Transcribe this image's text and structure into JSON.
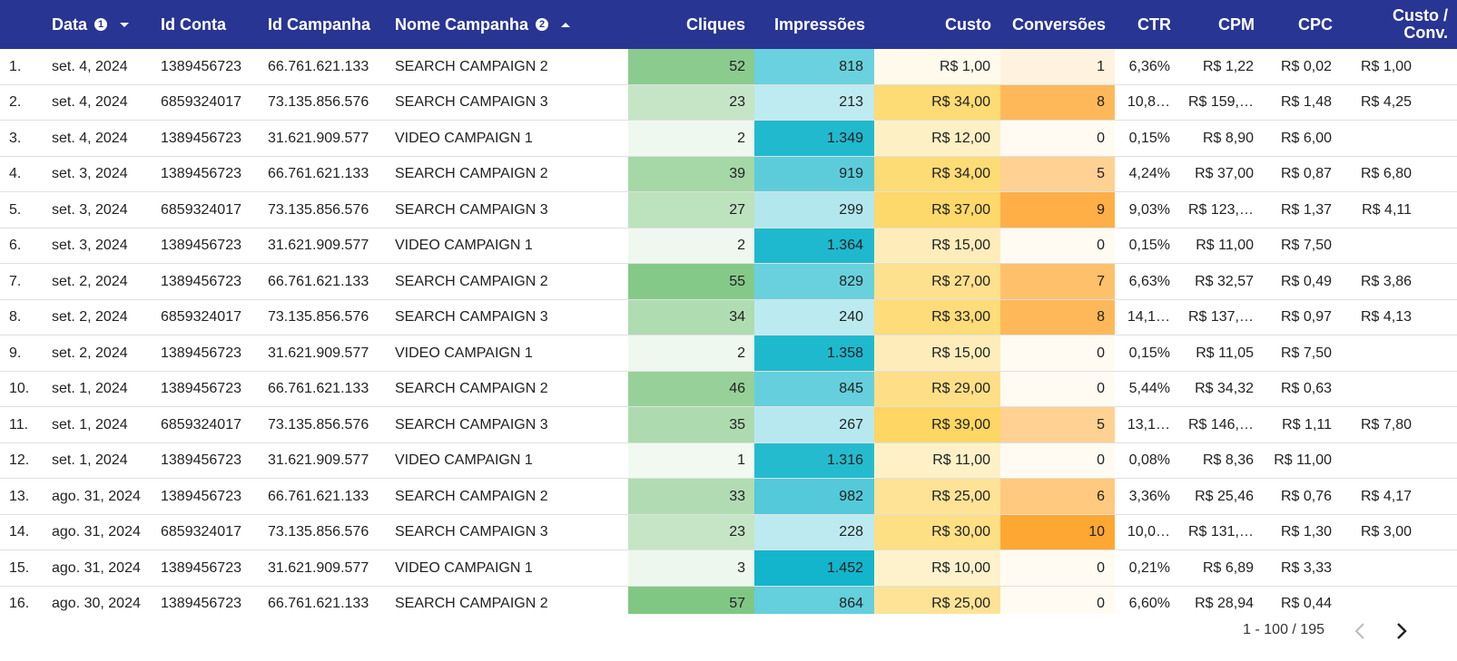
{
  "table": {
    "columns": [
      null,
      {
        "label": "Data",
        "sort_rank": 1
      },
      {
        "label": "Id Conta"
      },
      {
        "label": "Id Campanha"
      },
      {
        "label": "Nome Campanha",
        "sort_rank": 2
      },
      {
        "label": "Cliques"
      },
      {
        "label": "Impressões"
      },
      {
        "label": "Custo"
      },
      {
        "label": "Conversões"
      },
      {
        "label": "CTR"
      },
      {
        "label": "CPM"
      },
      {
        "label": "CPC"
      },
      {
        "label": "Custo / Conv."
      }
    ],
    "rows": [
      [
        "1.",
        "set. 4, 2024",
        "1389456723",
        "66.761.621.133",
        "SEARCH CAMPAIGN 2",
        "52",
        "818",
        "R$ 1,00",
        "1",
        "6,36%",
        "R$ 1,22",
        "R$ 0,02",
        "R$ 1,00"
      ],
      [
        "2.",
        "set. 4, 2024",
        "6859324017",
        "73.135.856.576",
        "SEARCH CAMPAIGN 3",
        "23",
        "213",
        "R$ 34,00",
        "8",
        "10,8…",
        "R$ 159,…",
        "R$ 1,48",
        "R$ 4,25"
      ],
      [
        "3.",
        "set. 4, 2024",
        "1389456723",
        "31.621.909.577",
        "VIDEO CAMPAIGN 1",
        "2",
        "1.349",
        "R$ 12,00",
        "0",
        "0,15%",
        "R$ 8,90",
        "R$ 6,00",
        null
      ],
      [
        "4.",
        "set. 3, 2024",
        "1389456723",
        "66.761.621.133",
        "SEARCH CAMPAIGN 2",
        "39",
        "919",
        "R$ 34,00",
        "5",
        "4,24%",
        "R$ 37,00",
        "R$ 0,87",
        "R$ 6,80"
      ],
      [
        "5.",
        "set. 3, 2024",
        "6859324017",
        "73.135.856.576",
        "SEARCH CAMPAIGN 3",
        "27",
        "299",
        "R$ 37,00",
        "9",
        "9,03%",
        "R$ 123,…",
        "R$ 1,37",
        "R$ 4,11"
      ],
      [
        "6.",
        "set. 3, 2024",
        "1389456723",
        "31.621.909.577",
        "VIDEO CAMPAIGN 1",
        "2",
        "1.364",
        "R$ 15,00",
        "0",
        "0,15%",
        "R$ 11,00",
        "R$ 7,50",
        null
      ],
      [
        "7.",
        "set. 2, 2024",
        "1389456723",
        "66.761.621.133",
        "SEARCH CAMPAIGN 2",
        "55",
        "829",
        "R$ 27,00",
        "7",
        "6,63%",
        "R$ 32,57",
        "R$ 0,49",
        "R$ 3,86"
      ],
      [
        "8.",
        "set. 2, 2024",
        "6859324017",
        "73.135.856.576",
        "SEARCH CAMPAIGN 3",
        "34",
        "240",
        "R$ 33,00",
        "8",
        "14,1…",
        "R$ 137,…",
        "R$ 0,97",
        "R$ 4,13"
      ],
      [
        "9.",
        "set. 2, 2024",
        "1389456723",
        "31.621.909.577",
        "VIDEO CAMPAIGN 1",
        "2",
        "1.358",
        "R$ 15,00",
        "0",
        "0,15%",
        "R$ 11,05",
        "R$ 7,50",
        null
      ],
      [
        "10.",
        "set. 1, 2024",
        "1389456723",
        "66.761.621.133",
        "SEARCH CAMPAIGN 2",
        "46",
        "845",
        "R$ 29,00",
        "0",
        "5,44%",
        "R$ 34,32",
        "R$ 0,63",
        null
      ],
      [
        "11.",
        "set. 1, 2024",
        "6859324017",
        "73.135.856.576",
        "SEARCH CAMPAIGN 3",
        "35",
        "267",
        "R$ 39,00",
        "5",
        "13,1…",
        "R$ 146,…",
        "R$ 1,11",
        "R$ 7,80"
      ],
      [
        "12.",
        "set. 1, 2024",
        "1389456723",
        "31.621.909.577",
        "VIDEO CAMPAIGN 1",
        "1",
        "1.316",
        "R$ 11,00",
        "0",
        "0,08%",
        "R$ 8,36",
        "R$ 11,00",
        null
      ],
      [
        "13.",
        "ago. 31, 2024",
        "1389456723",
        "66.761.621.133",
        "SEARCH CAMPAIGN 2",
        "33",
        "982",
        "R$ 25,00",
        "6",
        "3,36%",
        "R$ 25,46",
        "R$ 0,76",
        "R$ 4,17"
      ],
      [
        "14.",
        "ago. 31, 2024",
        "6859324017",
        "73.135.856.576",
        "SEARCH CAMPAIGN 3",
        "23",
        "228",
        "R$ 30,00",
        "10",
        "10,0…",
        "R$ 131,…",
        "R$ 1,30",
        "R$ 3,00"
      ],
      [
        "15.",
        "ago. 31, 2024",
        "1389456723",
        "31.621.909.577",
        "VIDEO CAMPAIGN 1",
        "3",
        "1.452",
        "R$ 10,00",
        "0",
        "0,21%",
        "R$ 6,89",
        "R$ 3,33",
        null
      ],
      [
        "16.",
        "ago. 30, 2024",
        "1389456723",
        "66.761.621.133",
        "SEARCH CAMPAIGN 2",
        "57",
        "864",
        "R$ 25,00",
        "0",
        "6,60%",
        "R$ 28,94",
        "R$ 0,44",
        null
      ]
    ]
  },
  "pagination": {
    "range": "1 - 100 / 195"
  }
}
